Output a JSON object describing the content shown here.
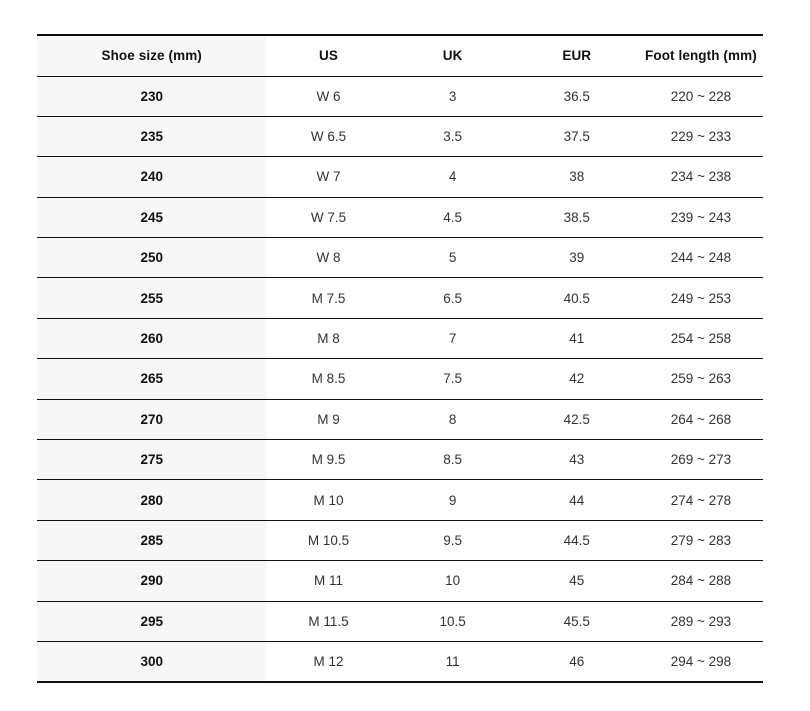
{
  "page": {
    "background_color": "#ffffff"
  },
  "chart_data": {
    "type": "table",
    "title": "",
    "columns": [
      "Shoe size (mm)",
      "US",
      "UK",
      "EUR",
      "Foot length (mm)"
    ],
    "rows": [
      [
        "230",
        "W 6",
        "3",
        "36.5",
        "220 ~ 228"
      ],
      [
        "235",
        "W 6.5",
        "3.5",
        "37.5",
        "229 ~ 233"
      ],
      [
        "240",
        "W 7",
        "4",
        "38",
        "234 ~ 238"
      ],
      [
        "245",
        "W 7.5",
        "4.5",
        "38.5",
        "239 ~ 243"
      ],
      [
        "250",
        "W 8",
        "5",
        "39",
        "244 ~ 248"
      ],
      [
        "255",
        "M 7.5",
        "6.5",
        "40.5",
        "249 ~ 253"
      ],
      [
        "260",
        "M 8",
        "7",
        "41",
        "254 ~ 258"
      ],
      [
        "265",
        "M 8.5",
        "7.5",
        "42",
        "259 ~ 263"
      ],
      [
        "270",
        "M 9",
        "8",
        "42.5",
        "264 ~ 268"
      ],
      [
        "275",
        "M 9.5",
        "8.5",
        "43",
        "269 ~ 273"
      ],
      [
        "280",
        "M 10",
        "9",
        "44",
        "274 ~ 278"
      ],
      [
        "285",
        "M 10.5",
        "9.5",
        "44.5",
        "279 ~ 283"
      ],
      [
        "290",
        "M 11",
        "10",
        "45",
        "284 ~ 288"
      ],
      [
        "295",
        "M 11.5",
        "10.5",
        "45.5",
        "289 ~ 293"
      ],
      [
        "300",
        "M 12",
        "11",
        "46",
        "294 ~ 298"
      ]
    ],
    "layout": {
      "first_column_header_background": "#f7f7f7",
      "border_color": "#111111",
      "header_text_color": "#111111",
      "cell_text_color": "#333333",
      "grid": "horizontal-only",
      "alignment": "center"
    }
  }
}
